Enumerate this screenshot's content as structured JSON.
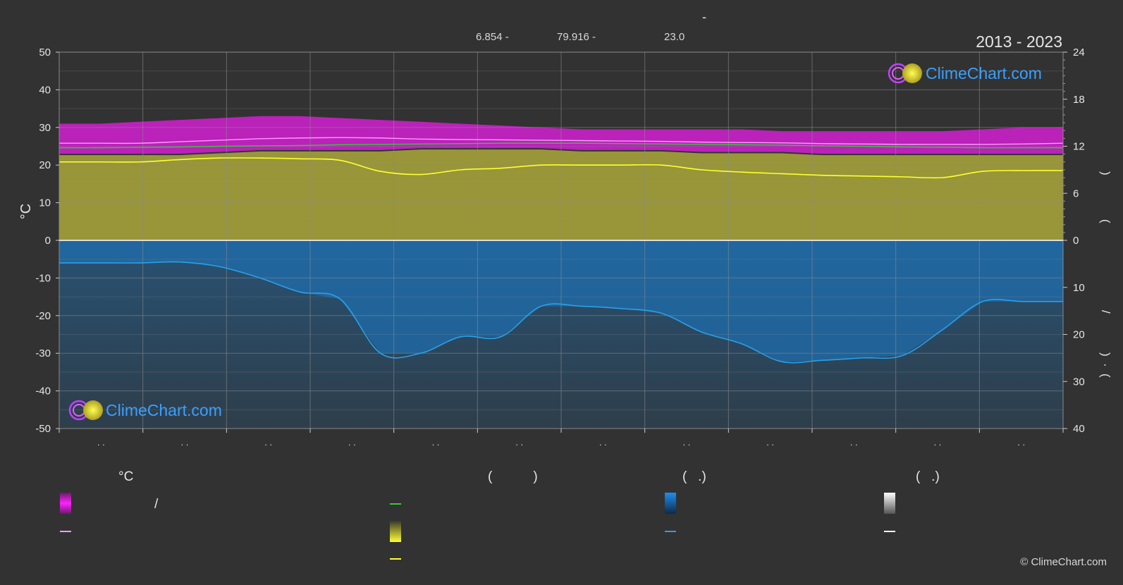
{
  "header": {
    "title": "-",
    "coords": [
      "6.854 -",
      "79.916 -",
      "23.0"
    ],
    "years": "2013 - 2023"
  },
  "watermark": {
    "brand": "ClimeChart.com"
  },
  "copyright": "© ClimeChart.com",
  "colors": {
    "background": "#323232",
    "temp_band": "#e81ee8",
    "mean_line": "#ff99ff",
    "dew_line": "#33cc33",
    "sun_band": "#aaa83a",
    "sun_line": "#ffff33",
    "rain_band": "#1e6fb0",
    "rain_line": "#2a9fe8",
    "grid": "#5a5a5a",
    "brand_blue": "#3aa0ff"
  },
  "chart_data": {
    "type": "area",
    "months_tick_labels": [
      ". .",
      ". .",
      ". .",
      ". .",
      ". .",
      ". .",
      ". .",
      ". .",
      ". .",
      ". .",
      ". .",
      ". ."
    ],
    "left_axis": {
      "label": "°C",
      "ylim": [
        -50,
        50
      ],
      "ticks": [
        50,
        40,
        30,
        20,
        10,
        0,
        -10,
        -20,
        -30,
        -40,
        -50
      ]
    },
    "right_axis_top": {
      "ticks": [
        24,
        18,
        12,
        6,
        0
      ],
      "ylim": [
        0,
        24
      ],
      "label_glyphs": [
        ")",
        "("
      ]
    },
    "right_axis_bottom": {
      "ticks": [
        0,
        10,
        20,
        30,
        40
      ],
      "ylim": [
        0,
        40
      ],
      "label_glyphs": [
        "/",
        ")",
        "·",
        "("
      ]
    },
    "x": [
      0.04,
      0.08,
      0.12,
      0.16,
      0.2,
      0.24,
      0.28,
      0.32,
      0.36,
      0.4,
      0.44,
      0.48,
      0.52,
      0.56,
      0.6,
      0.64,
      0.68,
      0.72,
      0.76,
      0.8,
      0.84,
      0.88,
      0.92,
      0.96,
      1.0
    ],
    "series": [
      {
        "key": "temp_max",
        "values": [
          31,
          31.5,
          32,
          32.5,
          33,
          33,
          32.5,
          32,
          31.5,
          31,
          30.5,
          30,
          29.5,
          29.5,
          29.5,
          29.5,
          29.5,
          29,
          29,
          29,
          29,
          29,
          29.5,
          30,
          30
        ]
      },
      {
        "key": "temp_min",
        "values": [
          23,
          23,
          23,
          23.5,
          24,
          24,
          24,
          24,
          24.5,
          24.5,
          24.5,
          24.5,
          24,
          24,
          24,
          23.5,
          23.5,
          23.5,
          23,
          23,
          23,
          23,
          23,
          23,
          23
        ]
      },
      {
        "key": "mean_temp",
        "values": [
          25.8,
          25.8,
          26.2,
          26.6,
          27.0,
          27.2,
          27.3,
          27.2,
          26.9,
          26.8,
          26.7,
          26.6,
          26.5,
          26.4,
          26.3,
          26.1,
          26.0,
          25.9,
          25.7,
          25.6,
          25.5,
          25.5,
          25.5,
          25.6,
          25.8
        ]
      },
      {
        "key": "dew_point",
        "values": [
          24.6,
          24.7,
          24.8,
          25.0,
          25.1,
          25.2,
          25.4,
          25.5,
          25.6,
          25.7,
          25.8,
          25.8,
          25.8,
          25.7,
          25.6,
          25.5,
          25.4,
          25.3,
          25.1,
          25.0,
          24.8,
          24.7,
          24.6,
          24.6,
          24.6
        ]
      },
      {
        "key": "sunshine_hours",
        "values": [
          10.0,
          10.0,
          10.3,
          10.5,
          10.5,
          10.4,
          10.2,
          8.8,
          8.4,
          9.0,
          9.2,
          9.6,
          9.6,
          9.6,
          9.6,
          9.0,
          8.7,
          8.5,
          8.3,
          8.2,
          8.1,
          8.0,
          8.8,
          8.9,
          8.9
        ]
      },
      {
        "key": "precip_mm",
        "values": [
          4.8,
          4.8,
          4.6,
          5.6,
          8.0,
          11.0,
          12.5,
          24.0,
          24.0,
          20.5,
          20.5,
          14.0,
          14.0,
          14.5,
          15.5,
          19.5,
          22.0,
          25.8,
          25.5,
          25.0,
          24.5,
          19.0,
          13.0,
          13.0,
          13.0
        ]
      }
    ]
  },
  "legend": {
    "columns": [
      {
        "heading": "°C",
        "items": [
          {
            "swatch": "temp_band",
            "text": "/"
          },
          {
            "swatch": "mean_line",
            "text": ""
          }
        ]
      },
      {
        "heading": "(           )",
        "items": [
          {
            "swatch": "dew_line",
            "text": ""
          },
          {
            "swatch": "sun_band",
            "text": ""
          },
          {
            "swatch": "sun_line",
            "text": ""
          }
        ]
      },
      {
        "heading": "(   .)",
        "items": [
          {
            "swatch": "rain_band",
            "text": ""
          },
          {
            "swatch": "rain_line",
            "text": ""
          }
        ]
      },
      {
        "heading": "(   .)",
        "items": [
          {
            "swatch": "snow_band",
            "text": ""
          },
          {
            "swatch": "snow_line",
            "text": ""
          }
        ]
      }
    ]
  }
}
